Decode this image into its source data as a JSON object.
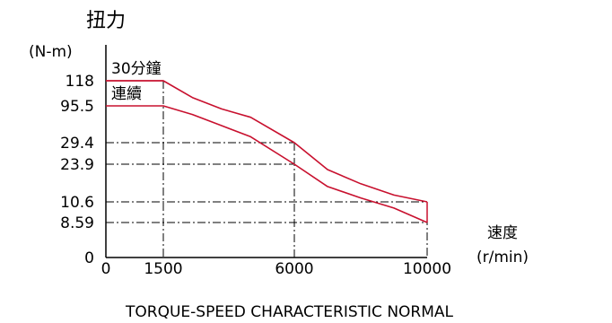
{
  "chart_data": {
    "type": "line",
    "title": "TORQUE-SPEED CHARACTERISTIC NORMAL",
    "ylabel": "扭力",
    "yunit": "(N-m)",
    "xlabel": "速度",
    "xunit": "(r/min)",
    "x_ticks": [
      "0",
      "1500",
      "6000",
      "10000"
    ],
    "y_ticks": [
      "118",
      "95.5",
      "29.4",
      "23.9",
      "10.6",
      "8.59",
      "0"
    ],
    "grid": "dash-dot reference lines at key values",
    "series": [
      {
        "name": "30分鐘",
        "color": "#c8102e",
        "points": [
          {
            "x": 0,
            "y": 118
          },
          {
            "x": 1500,
            "y": 118
          },
          {
            "x": 2500,
            "y": 103
          },
          {
            "x": 3500,
            "y": 90
          },
          {
            "x": 4500,
            "y": 75
          },
          {
            "x": 6000,
            "y": 29.4
          },
          {
            "x": 7000,
            "y": 22
          },
          {
            "x": 8000,
            "y": 17
          },
          {
            "x": 9000,
            "y": 13
          },
          {
            "x": 10000,
            "y": 10.6
          }
        ]
      },
      {
        "name": "連續",
        "color": "#c8102e",
        "points": [
          {
            "x": 0,
            "y": 95.5
          },
          {
            "x": 1500,
            "y": 95.5
          },
          {
            "x": 2500,
            "y": 80
          },
          {
            "x": 3500,
            "y": 60
          },
          {
            "x": 4500,
            "y": 40
          },
          {
            "x": 6000,
            "y": 23.9
          },
          {
            "x": 7000,
            "y": 16
          },
          {
            "x": 8000,
            "y": 12
          },
          {
            "x": 9000,
            "y": 10
          },
          {
            "x": 10000,
            "y": 8.59
          }
        ]
      }
    ],
    "reference_lines": {
      "horizontal": [
        {
          "y": 29.4,
          "x_to": 6000
        },
        {
          "y": 23.9,
          "x_to": 6000
        },
        {
          "y": 10.6,
          "x_to": 10000
        },
        {
          "y": 8.59,
          "x_to": 10000
        }
      ],
      "vertical": [
        1500,
        6000,
        10000
      ]
    }
  }
}
